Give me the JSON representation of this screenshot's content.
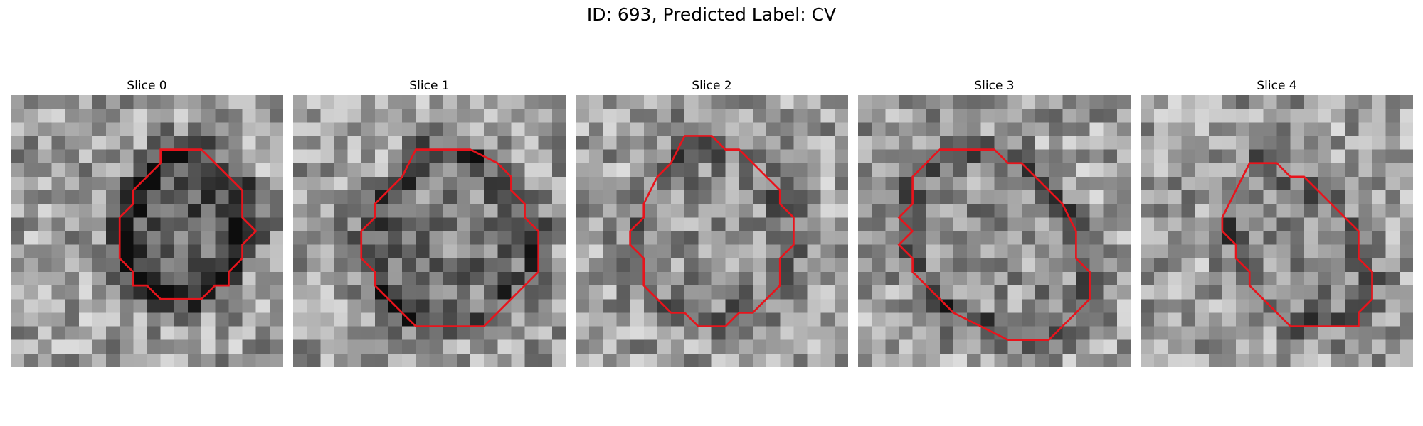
{
  "figure": {
    "title": "ID: 693, Predicted Label: CV",
    "contour_color": "#e8141c"
  },
  "panels": [
    {
      "title": "Slice 0",
      "darkness": 0.85,
      "core": 0.7,
      "contour": [
        [
          11,
          4
        ],
        [
          14,
          4
        ],
        [
          17,
          7
        ],
        [
          17,
          9
        ],
        [
          18,
          10
        ],
        [
          17,
          11
        ],
        [
          17,
          12
        ],
        [
          16,
          13
        ],
        [
          16,
          14
        ],
        [
          15,
          14
        ],
        [
          14,
          15
        ],
        [
          11,
          15
        ],
        [
          10,
          14
        ],
        [
          9,
          14
        ],
        [
          9,
          13
        ],
        [
          8,
          12
        ],
        [
          8,
          9
        ],
        [
          9,
          8
        ],
        [
          9,
          7
        ],
        [
          11,
          5
        ]
      ]
    },
    {
      "title": "Slice 1",
      "darkness": 0.55,
      "core": 0.4,
      "contour": [
        [
          9,
          4
        ],
        [
          13,
          4
        ],
        [
          15,
          5
        ],
        [
          16,
          6
        ],
        [
          16,
          7
        ],
        [
          17,
          8
        ],
        [
          17,
          9
        ],
        [
          18,
          10
        ],
        [
          18,
          13
        ],
        [
          17,
          14
        ],
        [
          16,
          15
        ],
        [
          15,
          16
        ],
        [
          14,
          17
        ],
        [
          9,
          17
        ],
        [
          8,
          16
        ],
        [
          7,
          15
        ],
        [
          6,
          14
        ],
        [
          6,
          13
        ],
        [
          5,
          12
        ],
        [
          5,
          10
        ],
        [
          6,
          9
        ],
        [
          6,
          8
        ],
        [
          7,
          7
        ],
        [
          8,
          6
        ]
      ]
    },
    {
      "title": "Slice 2",
      "darkness": 0.35,
      "core": 0.2,
      "contour": [
        [
          8,
          3
        ],
        [
          10,
          3
        ],
        [
          11,
          4
        ],
        [
          12,
          4
        ],
        [
          13,
          5
        ],
        [
          14,
          6
        ],
        [
          15,
          7
        ],
        [
          15,
          8
        ],
        [
          16,
          9
        ],
        [
          16,
          11
        ],
        [
          15,
          12
        ],
        [
          15,
          14
        ],
        [
          14,
          15
        ],
        [
          13,
          16
        ],
        [
          12,
          16
        ],
        [
          11,
          17
        ],
        [
          9,
          17
        ],
        [
          8,
          16
        ],
        [
          7,
          16
        ],
        [
          6,
          15
        ],
        [
          5,
          14
        ],
        [
          5,
          12
        ],
        [
          4,
          11
        ],
        [
          4,
          10
        ],
        [
          5,
          9
        ],
        [
          5,
          8
        ],
        [
          6,
          6
        ],
        [
          7,
          5
        ]
      ]
    },
    {
      "title": "Slice 3",
      "darkness": 0.55,
      "core": 0.15,
      "contour": [
        [
          6,
          4
        ],
        [
          10,
          4
        ],
        [
          11,
          5
        ],
        [
          12,
          5
        ],
        [
          14,
          7
        ],
        [
          15,
          8
        ],
        [
          16,
          10
        ],
        [
          16,
          12
        ],
        [
          17,
          13
        ],
        [
          17,
          15
        ],
        [
          16,
          16
        ],
        [
          15,
          17
        ],
        [
          14,
          18
        ],
        [
          12,
          18
        ],
        [
          11,
          18
        ],
        [
          9,
          17
        ],
        [
          7,
          16
        ],
        [
          6,
          15
        ],
        [
          5,
          14
        ],
        [
          4,
          13
        ],
        [
          4,
          12
        ],
        [
          3,
          11
        ],
        [
          4,
          10
        ],
        [
          3,
          9
        ],
        [
          4,
          8
        ],
        [
          4,
          6
        ],
        [
          5,
          5
        ]
      ]
    },
    {
      "title": "Slice 4",
      "darkness": 0.4,
      "core": 0.2,
      "contour": [
        [
          8,
          5
        ],
        [
          10,
          5
        ],
        [
          11,
          6
        ],
        [
          12,
          6
        ],
        [
          13,
          7
        ],
        [
          14,
          8
        ],
        [
          15,
          9
        ],
        [
          16,
          10
        ],
        [
          16,
          12
        ],
        [
          17,
          13
        ],
        [
          17,
          15
        ],
        [
          16,
          16
        ],
        [
          16,
          17
        ],
        [
          11,
          17
        ],
        [
          10,
          16
        ],
        [
          9,
          15
        ],
        [
          8,
          14
        ],
        [
          8,
          13
        ],
        [
          7,
          12
        ],
        [
          7,
          11
        ],
        [
          6,
          10
        ],
        [
          6,
          9
        ],
        [
          7,
          7
        ]
      ]
    }
  ]
}
